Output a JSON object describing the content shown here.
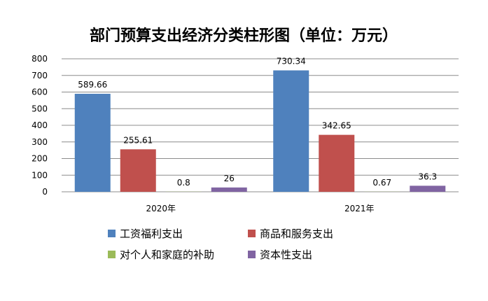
{
  "chart_data": {
    "type": "bar",
    "title": "部门预算支出经济分类柱形图（单位：万元）",
    "categories": [
      "2020年",
      "2021年"
    ],
    "series": [
      {
        "name": "工资福利支出",
        "values": [
          589.66,
          730.34
        ],
        "labels": [
          "589.66",
          "730.34"
        ],
        "color": "#4f81bd"
      },
      {
        "name": "商品和服务支出",
        "values": [
          255.61,
          342.65
        ],
        "labels": [
          "255.61",
          "342.65"
        ],
        "color": "#c0504d"
      },
      {
        "name": "对个人和家庭的补助",
        "values": [
          0.8,
          0.67
        ],
        "labels": [
          "0.8",
          "0.67"
        ],
        "color": "#9bbb59"
      },
      {
        "name": "资本性支出",
        "values": [
          26,
          36.3
        ],
        "labels": [
          "26",
          "36.3"
        ],
        "color": "#8064a2"
      }
    ],
    "ylim": [
      0,
      800
    ],
    "yticks": [
      0,
      100,
      200,
      300,
      400,
      500,
      600,
      700,
      800
    ],
    "grid": true,
    "legend_position": "bottom"
  }
}
